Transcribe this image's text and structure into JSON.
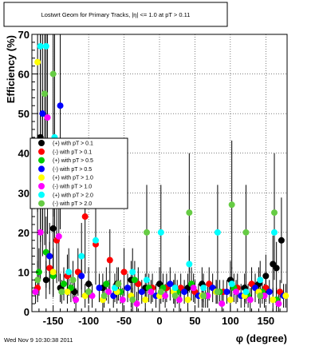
{
  "canvas_title": "Lostwrt Geom for Primary Tracks, |η| <= 1.0 at pT > 0.11",
  "footer_timestamp": "Wed Nov  9 10:30:38 2011",
  "chart_data": {
    "type": "scatter",
    "title": "Lostwrt Geom for Primary Tracks, |η| <= 1.0 at pT > 0.11",
    "xlabel": "φ (degree)",
    "ylabel": "Efficiency (%)",
    "xlim": [
      -180,
      180
    ],
    "ylim": [
      0,
      70
    ],
    "x_ticks": [
      -150,
      -100,
      -50,
      0,
      50,
      100,
      150
    ],
    "y_ticks": [
      0,
      10,
      20,
      30,
      40,
      50,
      60,
      70
    ],
    "grid": true,
    "legend_position": "left-middle",
    "series": [
      {
        "name": "(+) with pT > 0.1",
        "color": "#000000",
        "x": [
          -172,
          -168,
          -160,
          -150,
          -140,
          -120,
          -100,
          -80,
          -60,
          -40,
          -20,
          0,
          20,
          40,
          60,
          80,
          100,
          120,
          140,
          150,
          160,
          165,
          172
        ],
        "y": [
          28,
          44,
          8,
          21,
          6,
          5,
          7,
          6,
          7,
          8,
          6,
          7,
          5,
          6,
          7,
          5,
          8,
          6,
          7,
          9,
          12,
          11,
          18
        ]
      },
      {
        "name": "(-) with pT > 0.1",
        "color": "#ff0000",
        "x": [
          -172,
          -165,
          -155,
          -145,
          -130,
          -115,
          -105,
          -90,
          -70,
          -50,
          -30,
          -10,
          10,
          30,
          50,
          70,
          90,
          110,
          130,
          150,
          170
        ],
        "y": [
          6,
          35,
          11,
          18,
          9,
          10,
          24,
          17,
          13,
          10,
          7,
          6,
          6,
          6,
          5,
          7,
          5,
          6,
          7,
          6,
          5
        ]
      },
      {
        "name": "(+) with pT > 0.5",
        "color": "#00cc00",
        "x": [
          -170,
          -160,
          -150,
          -135,
          -125,
          -100,
          -75,
          -55,
          -35,
          -15,
          5,
          25,
          45,
          65,
          85,
          105,
          125,
          145,
          165
        ],
        "y": [
          10,
          15,
          9,
          7,
          6,
          5,
          7,
          5,
          8,
          6,
          6,
          5,
          7,
          4,
          5,
          6,
          4,
          5,
          3
        ]
      },
      {
        "name": "(-) with pT > 0.5",
        "color": "#0000ff",
        "x": [
          -165,
          -155,
          -140,
          -110,
          -85,
          -65,
          -45,
          -25,
          -5,
          15,
          35,
          55,
          75,
          95,
          115,
          135,
          155,
          175
        ],
        "y": [
          50,
          14,
          52,
          9,
          6,
          4,
          6,
          5,
          4,
          7,
          5,
          4,
          6,
          5,
          4,
          6,
          5,
          4
        ]
      },
      {
        "name": "(+) with pT > 1.0",
        "color": "#ffff00",
        "x": [
          -172,
          -162,
          -150,
          -130,
          -105,
          -80,
          -60,
          -40,
          -20,
          0,
          20,
          40,
          60,
          80,
          100,
          120,
          140,
          160,
          178
        ],
        "y": [
          63,
          42,
          10,
          5,
          4,
          3,
          5,
          4,
          3,
          4,
          5,
          3,
          4,
          5,
          3,
          4,
          5,
          3,
          4
        ]
      },
      {
        "name": "(-) with pT > 1.0",
        "color": "#ff00ff",
        "x": [
          -175,
          -168,
          -158,
          -142,
          -118,
          -95,
          -72,
          -52,
          -32,
          -12,
          8,
          28,
          48,
          68,
          88,
          108,
          128,
          148,
          168
        ],
        "y": [
          5,
          20,
          49,
          19,
          3,
          4,
          5,
          3,
          2,
          5,
          4,
          3,
          6,
          4,
          2,
          5,
          3,
          4,
          2
        ]
      },
      {
        "name": "(+) with pT > 2.0",
        "color": "#00ffff",
        "x": [
          -168,
          -160,
          -148,
          -128,
          -110,
          -90,
          -63,
          -38,
          -18,
          2,
          22,
          42,
          62,
          82,
          102,
          122,
          142,
          162
        ],
        "y": [
          67,
          67,
          44,
          10,
          14,
          18,
          6,
          10,
          8,
          20,
          6,
          12,
          6,
          20,
          7,
          5,
          8,
          20
        ]
      },
      {
        "name": "(-) with pT > 2.0",
        "color": "#66cc44",
        "x": [
          -172,
          -162,
          -150,
          -138,
          -122,
          -100,
          -78,
          -58,
          -38,
          -18,
          2,
          22,
          42,
          62,
          82,
          102,
          122,
          142,
          162
        ],
        "y": [
          8,
          55,
          60,
          5,
          8,
          5,
          4,
          7,
          3,
          20,
          5,
          4,
          25,
          4,
          5,
          27,
          20,
          4,
          25
        ]
      }
    ]
  }
}
